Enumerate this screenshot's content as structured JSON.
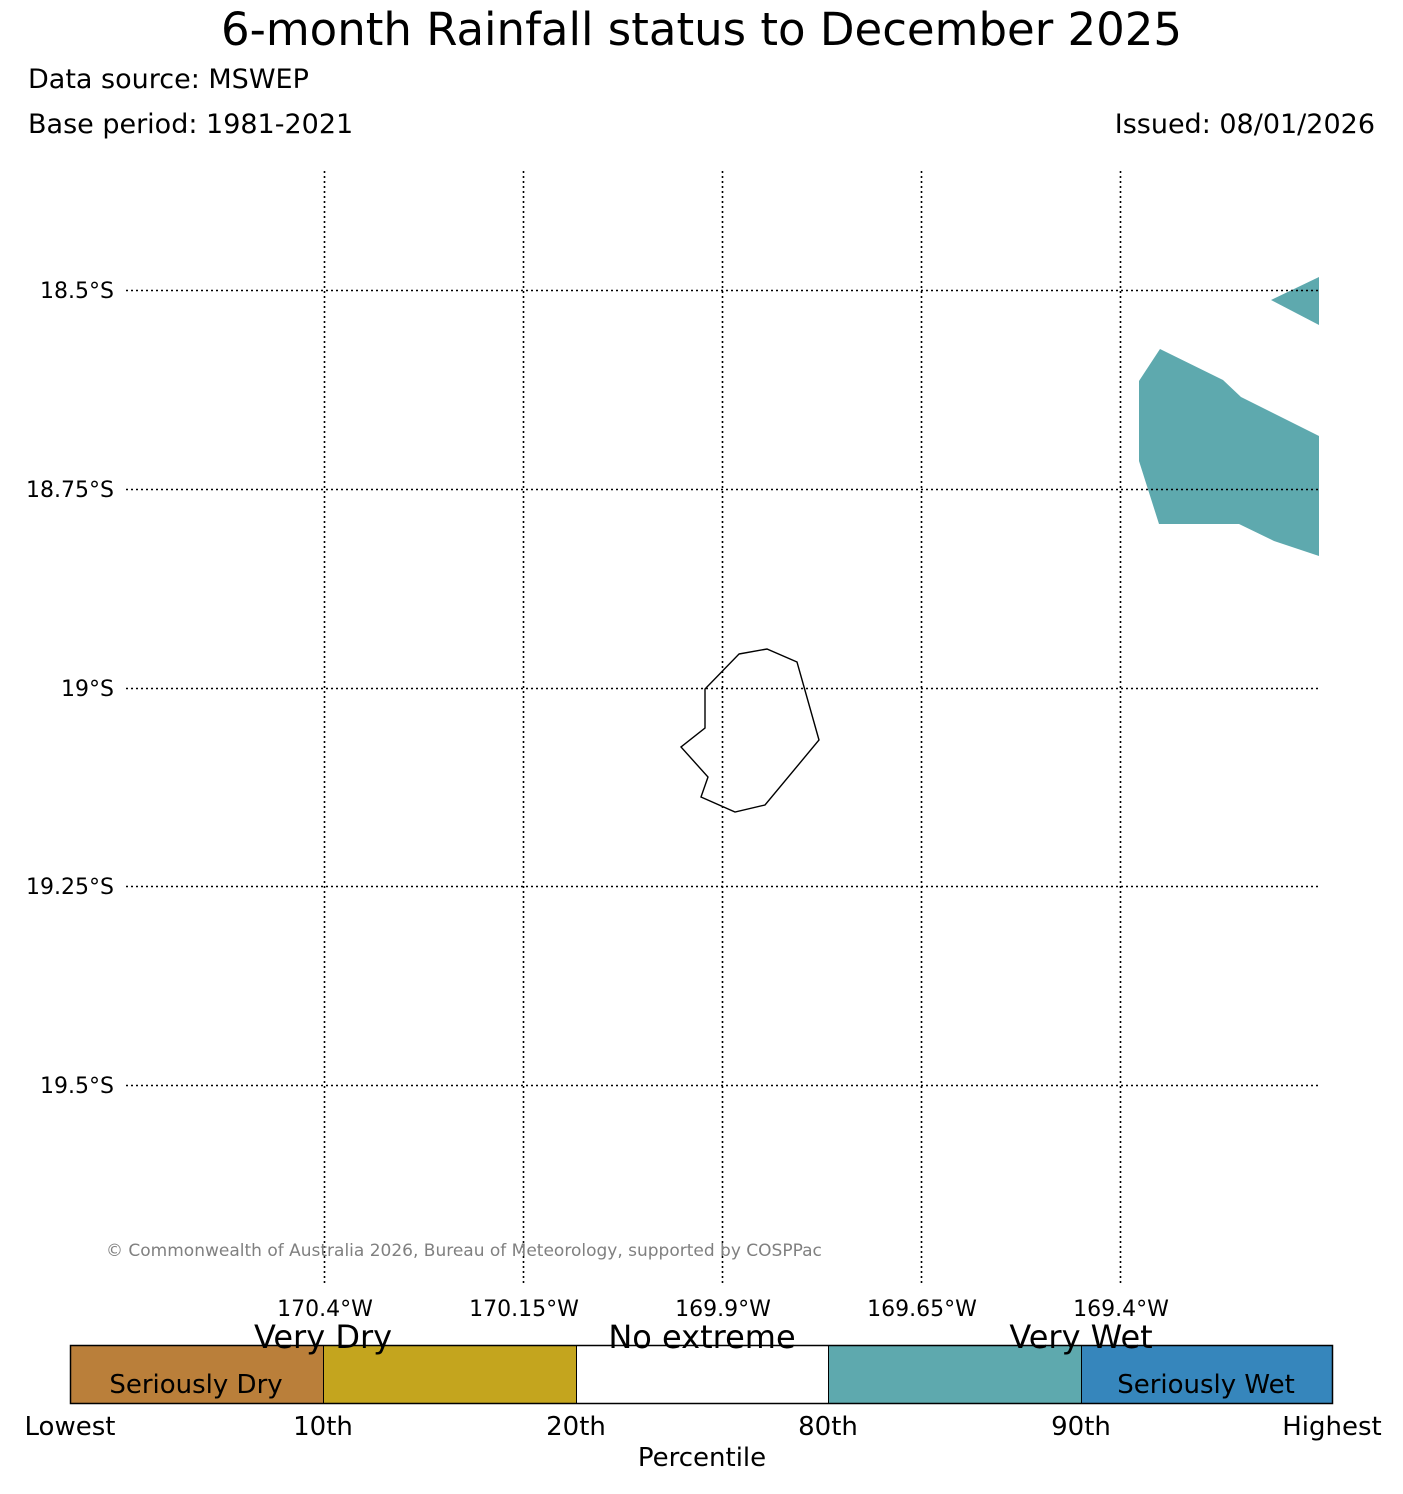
{
  "header": {
    "title": "6-month Rainfall status to December 2025",
    "data_source": "Data source: MSWEP",
    "base_period": "Base period: 1981-2021",
    "issued": "Issued: 08/01/2026"
  },
  "map": {
    "lat_labels": [
      "18.5°S",
      "18.75°S",
      "19°S",
      "19.25°S",
      "19.5°S"
    ],
    "lon_labels": [
      "170.4°W",
      "170.15°W",
      "169.9°W",
      "169.65°W",
      "169.4°W"
    ],
    "copyright": "© Commonwealth of Australia 2026, Bureau of Meteorology, supported by COSPPac",
    "colors": {
      "very_wet": "#5ea9ae",
      "coastline": "#000000",
      "grid": "#000000"
    }
  },
  "legend": {
    "top_labels": [
      "Very Dry",
      "No extreme",
      "Very Wet"
    ],
    "inner_labels": [
      "Seriously Dry",
      "Seriously Wet"
    ],
    "ticks": [
      "Lowest",
      "10th",
      "20th",
      "80th",
      "90th",
      "Highest"
    ],
    "axis_label": "Percentile",
    "colors": [
      "#ba7f3a",
      "#c4a51e",
      "#ffffff",
      "#5ea9ae",
      "#3686bc"
    ]
  }
}
